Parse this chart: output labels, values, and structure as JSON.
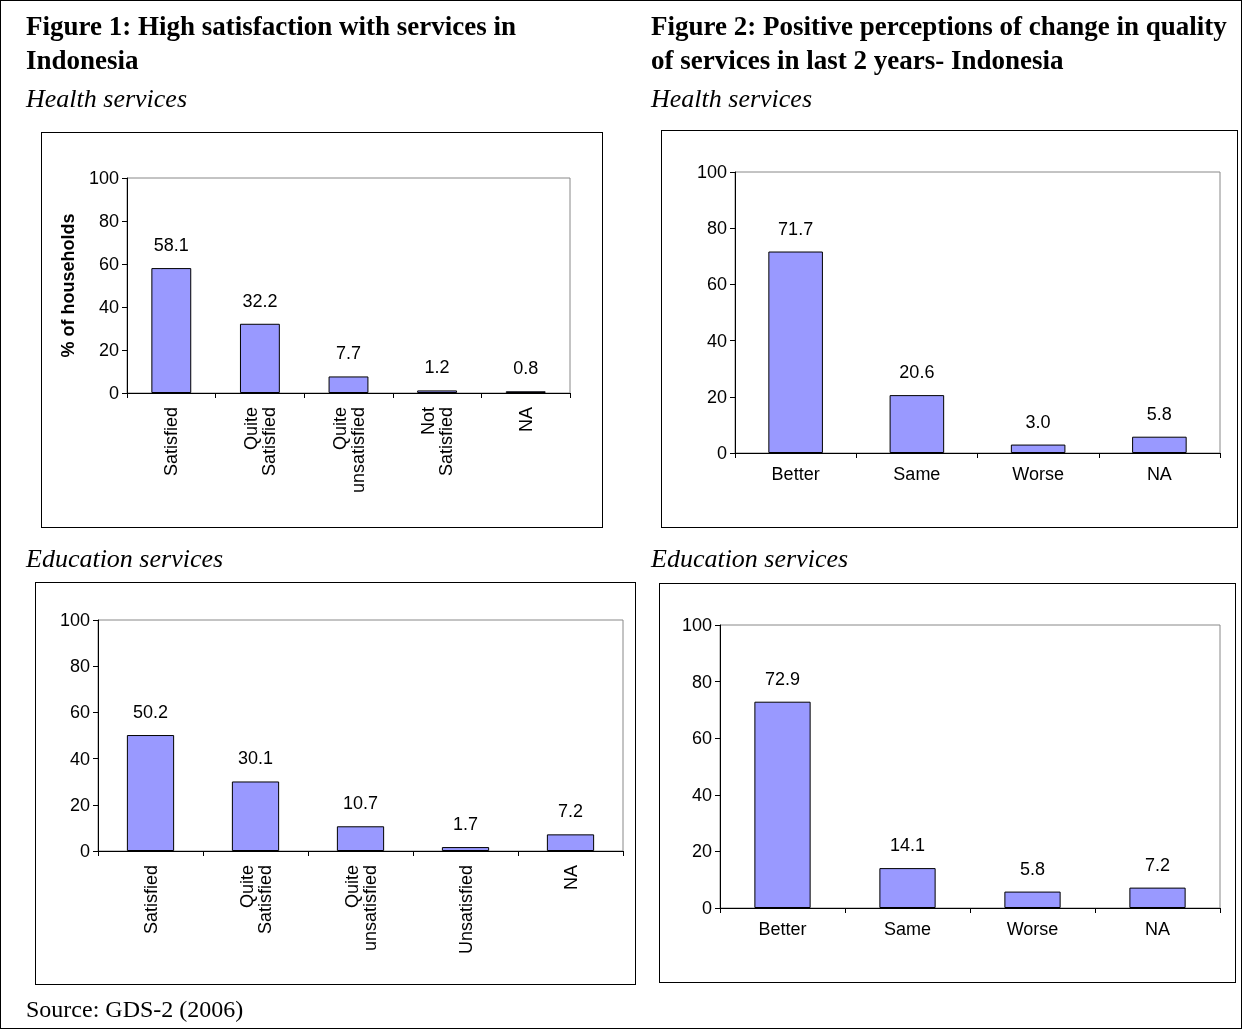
{
  "chart_data": [
    {
      "type": "bar",
      "title": "Figure 1: High satisfaction with services in Indonesia",
      "subtitle": "Health services",
      "ylabel": "% of households",
      "categories": [
        "Satisfied",
        "Quite Satisfied",
        "Quite unsatisfied",
        "Not Satisfied",
        "NA"
      ],
      "values": [
        58.1,
        32.2,
        7.7,
        1.2,
        0.8
      ],
      "value_labels": [
        "58.1",
        "32.2",
        "7.7",
        "1.2",
        "0.8"
      ],
      "color": "#9999ff",
      "ylim": [
        0,
        100
      ],
      "yticks": [
        0,
        20,
        40,
        60,
        80,
        100
      ],
      "grid": false
    },
    {
      "type": "bar",
      "title": "Figure 2: Positive perceptions of change in quality of services in last 2 years- Indonesia",
      "subtitle": "Health services",
      "categories": [
        "Better",
        "Same",
        "Worse",
        "NA"
      ],
      "values": [
        71.7,
        20.6,
        3.0,
        5.8
      ],
      "value_labels": [
        "71.7",
        "20.6",
        "3.0",
        "5.8"
      ],
      "color": "#9999ff",
      "ylim": [
        0,
        100
      ],
      "yticks": [
        0,
        20,
        40,
        60,
        80,
        100
      ],
      "grid": false
    },
    {
      "type": "bar",
      "subtitle": "Education services",
      "categories": [
        "Satisfied",
        "Quite Satisfied",
        "Quite unsatisfied",
        "Unsatisfied",
        "NA"
      ],
      "values": [
        50.2,
        30.1,
        10.7,
        1.7,
        7.2
      ],
      "value_labels": [
        "50.2",
        "30.1",
        "10.7",
        "1.7",
        "7.2"
      ],
      "color": "#9999ff",
      "ylim": [
        0,
        100
      ],
      "yticks": [
        0,
        20,
        40,
        60,
        80,
        100
      ],
      "grid": false,
      "annotations": [
        "Source: GDS-2 (2006)"
      ]
    },
    {
      "type": "bar",
      "subtitle": "Education services",
      "categories": [
        "Better",
        "Same",
        "Worse",
        "NA"
      ],
      "values": [
        72.9,
        14.1,
        5.8,
        7.2
      ],
      "value_labels": [
        "72.9",
        "14.1",
        "5.8",
        "7.2"
      ],
      "color": "#9999ff",
      "ylim": [
        0,
        100
      ],
      "yticks": [
        0,
        20,
        40,
        60,
        80,
        100
      ],
      "grid": false
    }
  ]
}
